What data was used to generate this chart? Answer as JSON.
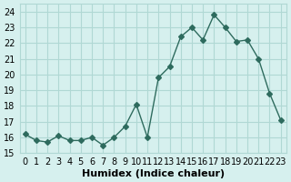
{
  "x": [
    0,
    1,
    2,
    3,
    4,
    5,
    6,
    7,
    8,
    9,
    10,
    11,
    12,
    13,
    14,
    15,
    16,
    17,
    18,
    19,
    20,
    21,
    22,
    23
  ],
  "y": [
    16.2,
    15.8,
    15.7,
    16.1,
    15.8,
    15.8,
    16.0,
    15.5,
    16.0,
    16.7,
    18.1,
    16.0,
    19.8,
    20.5,
    22.4,
    23.0,
    22.2,
    23.8,
    23.0,
    22.1,
    22.2,
    21.0,
    18.8,
    17.1
  ],
  "line_color": "#2E6B5E",
  "marker": "D",
  "marker_size": 3,
  "xlabel": "Humidex (Indice chaleur)",
  "xlim": [
    -0.5,
    23.5
  ],
  "ylim": [
    15,
    24.5
  ],
  "yticks": [
    15,
    16,
    17,
    18,
    19,
    20,
    21,
    22,
    23,
    24
  ],
  "xticks": [
    0,
    1,
    2,
    3,
    4,
    5,
    6,
    7,
    8,
    9,
    10,
    11,
    12,
    13,
    14,
    15,
    16,
    17,
    18,
    19,
    20,
    21,
    22,
    23
  ],
  "bg_color": "#D6F0EE",
  "grid_color": "#B0D8D4",
  "tick_label_fontsize": 7,
  "xlabel_fontsize": 8
}
